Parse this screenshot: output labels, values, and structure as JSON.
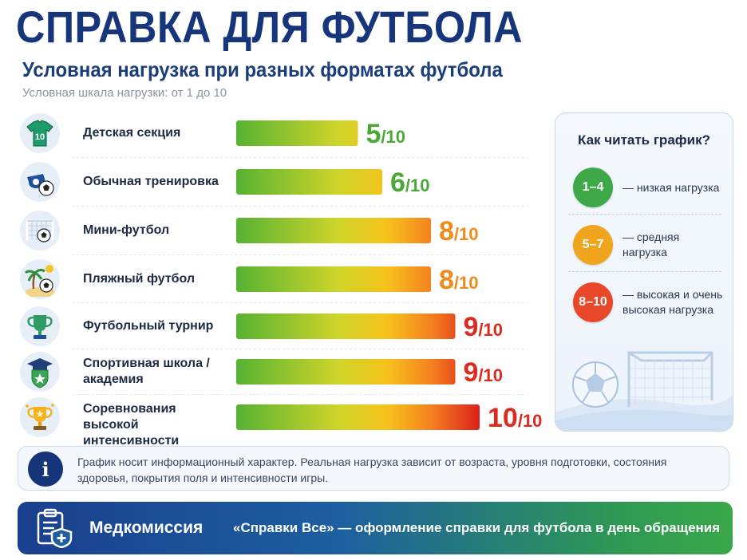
{
  "header": {
    "title": "СПРАВКА ДЛЯ ФУТБОЛА",
    "subtitle": "Условная нагрузка при разных форматах футбола",
    "scale_note": "Условная шкала нагрузки: от 1 до 10"
  },
  "chart_data": {
    "type": "bar",
    "orientation": "horizontal",
    "categories": [
      "Детская секция",
      "Обычная тренировка",
      "Мини-футбол",
      "Пляжный футбол",
      "Футбольный турнир",
      "Спортивная школа / академия",
      "Соревнования высокой интенсивности"
    ],
    "values": [
      5,
      6,
      8,
      8,
      9,
      9,
      10
    ],
    "value_labels": [
      "5",
      "6",
      "8",
      "8",
      "9",
      "9",
      "10"
    ],
    "value_suffix": "/10",
    "xlim": [
      0,
      10
    ],
    "grid": false,
    "legend_position": "right"
  },
  "rows": [
    {
      "label_lines": [
        "Детская секция"
      ],
      "icon": "jersey-icon",
      "jersey_number": "10"
    },
    {
      "label_lines": [
        "Обычная тренировка"
      ],
      "icon": "whistle-ball-icon"
    },
    {
      "label_lines": [
        "Мини-футбол"
      ],
      "icon": "goal-ball-icon"
    },
    {
      "label_lines": [
        "Пляжный футбол"
      ],
      "icon": "beach-ball-icon"
    },
    {
      "label_lines": [
        "Футбольный турнир"
      ],
      "icon": "trophy-icon"
    },
    {
      "label_lines": [
        "Спортивная школа /",
        "академия"
      ],
      "icon": "academy-shield-icon"
    },
    {
      "label_lines": [
        "Соревнования высокой",
        "интенсивности"
      ],
      "icon": "trophy-stars-icon"
    }
  ],
  "legend": {
    "title": "Как читать график?",
    "items": [
      {
        "range": "1–4",
        "text": "— низкая нагрузка",
        "color": "#3fa94a"
      },
      {
        "range": "5–7",
        "text": "— средняя нагрузка",
        "color": "#f0a51e"
      },
      {
        "range": "8–10",
        "text": "— высокая и очень высокая нагрузка",
        "color": "#e8472a"
      }
    ],
    "illustration": "goal-and-ball-icon"
  },
  "info": {
    "icon": "info-icon",
    "text": "График носит информационный характер. Реальная нагрузка зависит от возраста, уровня подготовки, состояния здоровья, покрытия поля и интенсивности игры."
  },
  "footer": {
    "icon": "medical-clipboard-icon",
    "brand": "Медкомиссия",
    "text": "«Справки Все» — оформление справки для футбола в день обращения"
  },
  "colors": {
    "title": "#16357a",
    "green": "#5ab52f",
    "yellow": "#e8c21a",
    "orange": "#f5861f",
    "red": "#e1261c"
  }
}
